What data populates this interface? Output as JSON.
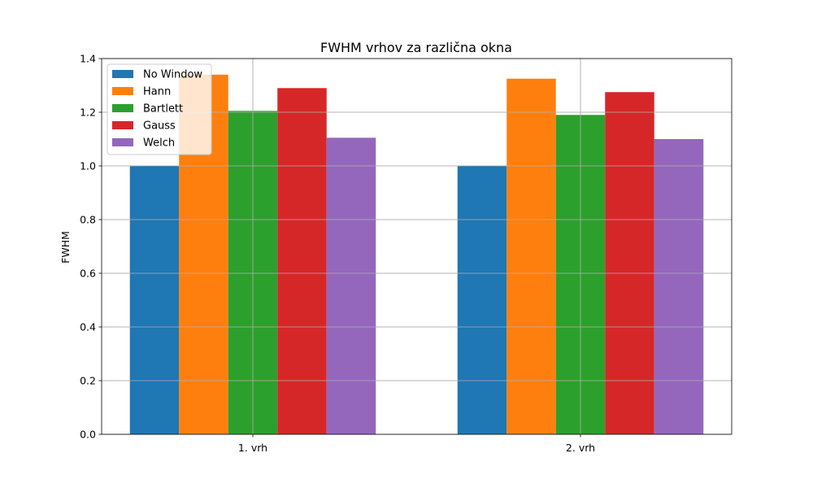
{
  "chart_data": {
    "type": "bar",
    "title": "FWHM vrhov za različna okna",
    "xlabel": "",
    "ylabel": "FWHM",
    "categories": [
      "1. vrh",
      "2. vrh"
    ],
    "ylim": [
      0,
      1.4
    ],
    "yticks": [
      "0.0",
      "0.2",
      "0.4",
      "0.6",
      "0.8",
      "1.0",
      "1.2",
      "1.4"
    ],
    "grid": true,
    "legend_position": "top-left",
    "series": [
      {
        "name": "No Window",
        "color": "#1f77b4",
        "values": [
          1.0,
          1.0
        ]
      },
      {
        "name": "Hann",
        "color": "#ff7f0e",
        "values": [
          1.34,
          1.325
        ]
      },
      {
        "name": "Bartlett",
        "color": "#2ca02c",
        "values": [
          1.205,
          1.19
        ]
      },
      {
        "name": "Gauss",
        "color": "#d62728",
        "values": [
          1.29,
          1.275
        ]
      },
      {
        "name": "Welch",
        "color": "#9467bd",
        "values": [
          1.105,
          1.1
        ]
      }
    ]
  }
}
